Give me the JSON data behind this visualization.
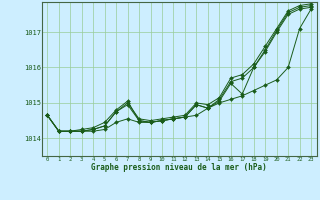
{
  "title": "Graphe pression niveau de la mer (hPa)",
  "background_color": "#cdeeff",
  "grid_color": "#99cc99",
  "line_color": "#1a5c1a",
  "x_ticks": [
    0,
    1,
    2,
    3,
    4,
    5,
    6,
    7,
    8,
    9,
    10,
    11,
    12,
    13,
    14,
    15,
    16,
    17,
    18,
    19,
    20,
    21,
    22,
    23
  ],
  "y_ticks": [
    1014,
    1015,
    1016,
    1017
  ],
  "ylim": [
    1013.5,
    1017.85
  ],
  "xlim": [
    -0.5,
    23.5
  ],
  "series": [
    [
      1014.65,
      1014.2,
      1014.2,
      1014.2,
      1014.2,
      1014.25,
      1014.45,
      1014.55,
      1014.45,
      1014.45,
      1014.5,
      1014.55,
      1014.6,
      1014.65,
      1014.85,
      1015.0,
      1015.1,
      1015.2,
      1015.35,
      1015.5,
      1015.65,
      1016.0,
      1017.1,
      1017.65
    ],
    [
      1014.65,
      1014.2,
      1014.2,
      1014.2,
      1014.25,
      1014.35,
      1014.75,
      1015.0,
      1014.55,
      1014.5,
      1014.55,
      1014.6,
      1014.65,
      1015.0,
      1014.95,
      1015.15,
      1015.7,
      1015.8,
      1016.1,
      1016.6,
      1017.1,
      1017.6,
      1017.75,
      1017.8
    ],
    [
      1014.65,
      1014.2,
      1014.2,
      1014.2,
      1014.25,
      1014.35,
      1014.75,
      1014.95,
      1014.5,
      1014.45,
      1014.5,
      1014.55,
      1014.6,
      1014.95,
      1014.85,
      1015.05,
      1015.55,
      1015.25,
      1016.0,
      1016.45,
      1017.0,
      1017.5,
      1017.65,
      1017.7
    ],
    [
      1014.65,
      1014.2,
      1014.2,
      1014.25,
      1014.3,
      1014.45,
      1014.8,
      1015.05,
      1014.5,
      1014.45,
      1014.5,
      1014.55,
      1014.6,
      1014.95,
      1014.85,
      1015.1,
      1015.6,
      1015.7,
      1016.0,
      1016.5,
      1017.05,
      1017.55,
      1017.7,
      1017.75
    ]
  ]
}
